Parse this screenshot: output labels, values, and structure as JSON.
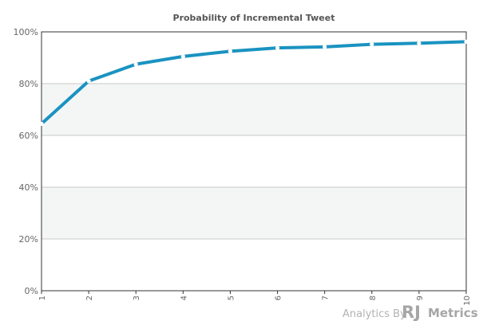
{
  "chart_data": {
    "type": "line",
    "title": "Probability of Incremental Tweet",
    "xlabel": "",
    "ylabel": "",
    "x": [
      "1",
      "2",
      "3",
      "4",
      "5",
      "6",
      "7",
      "8",
      "9",
      "10"
    ],
    "series": [
      {
        "values": [
          64.5,
          81.0,
          87.5,
          90.5,
          92.5,
          93.8,
          94.2,
          95.2,
          95.6,
          96.2
        ]
      }
    ],
    "ylim": [
      0,
      100
    ],
    "y_ticks": [
      "0%",
      "20%",
      "40%",
      "60%",
      "80%",
      "100%"
    ],
    "grid": true,
    "legend": "none",
    "line_color": "#1a93c1",
    "band_color": "#f4f6f6"
  },
  "branding": {
    "prefix": "Analytics By",
    "logo_mark": "RJ",
    "logo_name": "Metrics"
  }
}
